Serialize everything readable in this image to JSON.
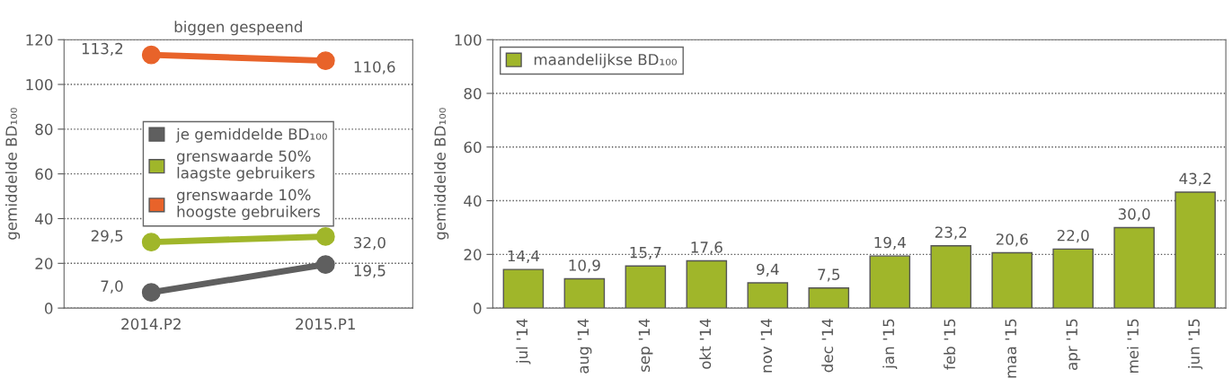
{
  "chart_data": [
    {
      "type": "line",
      "title": "biggen gespeend",
      "ylabel": "gemiddelde BD₁₀₀",
      "categories": [
        "2014.P2",
        "2015.P1"
      ],
      "series": [
        {
          "name": "je gemiddelde BD₁₀₀",
          "color": "#5f5f5f",
          "values": [
            7.0,
            19.5
          ],
          "value_labels": [
            "7,0",
            "19,5"
          ]
        },
        {
          "name": "grenswaarde 50%\nlaagste gebruikers",
          "color": "#a0b62a",
          "values": [
            29.5,
            32.0
          ],
          "value_labels": [
            "29,5",
            "32,0"
          ]
        },
        {
          "name": "grenswaarde 10%\nhoogste gebruikers",
          "color": "#e8632a",
          "values": [
            113.2,
            110.6
          ],
          "value_labels": [
            "113,2",
            "110,6"
          ]
        }
      ],
      "ylim": [
        0,
        120
      ],
      "yticks": [
        0,
        20,
        40,
        60,
        80,
        100,
        120
      ],
      "grid": "y",
      "legend": "center",
      "marker": "circle",
      "line_style": "solid"
    },
    {
      "type": "bar",
      "ylabel": "gemiddelde BD₁₀₀",
      "categories": [
        "jul '14",
        "aug '14",
        "sep '14",
        "okt '14",
        "nov '14",
        "dec '14",
        "jan '15",
        "feb '15",
        "maa '15",
        "apr '15",
        "mei '15",
        "jun '15"
      ],
      "series": [
        {
          "name": "maandelijkse BD₁₀₀",
          "color": "#a0b62a",
          "values": [
            14.4,
            10.9,
            15.7,
            17.6,
            9.4,
            7.5,
            19.4,
            23.2,
            20.6,
            22.0,
            30.0,
            43.2
          ],
          "value_labels": [
            "14,4",
            "10,9",
            "15,7",
            "17,6",
            "9,4",
            "7,5",
            "19,4",
            "23,2",
            "20,6",
            "22,0",
            "30,0",
            "43,2"
          ]
        }
      ],
      "ylim": [
        0,
        100
      ],
      "yticks": [
        0,
        20,
        40,
        60,
        80,
        100
      ],
      "grid": "y",
      "legend": "top left"
    }
  ]
}
